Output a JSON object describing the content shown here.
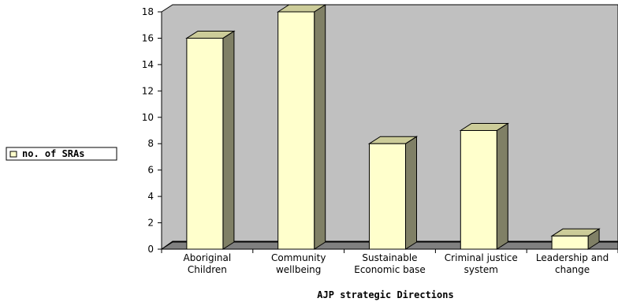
{
  "chart_data": {
    "type": "bar",
    "categories": [
      [
        "Aboriginal",
        "Children"
      ],
      [
        "Community",
        "wellbeing"
      ],
      [
        "Sustainable",
        "Economic base"
      ],
      [
        "Criminal justice",
        "system"
      ],
      [
        "Leadership and",
        "change"
      ]
    ],
    "series": [
      {
        "name": "no. of SRAs",
        "values": [
          16,
          18,
          8,
          9,
          1
        ]
      }
    ],
    "xlabel": "AJP strategic Directions",
    "ylabel": "",
    "ylim": [
      0,
      18
    ],
    "yticks": [
      "0",
      "2",
      "4",
      "6",
      "8",
      "10",
      "12",
      "14",
      "16",
      "18"
    ],
    "grid": false,
    "legend_position": "left",
    "colors": {
      "bar_front": "#ffffcc",
      "bar_side": "#808066",
      "bar_top": "#cccc99",
      "plot_back": "#c0c0c0",
      "floor": "#808080",
      "outline": "#000000"
    }
  }
}
